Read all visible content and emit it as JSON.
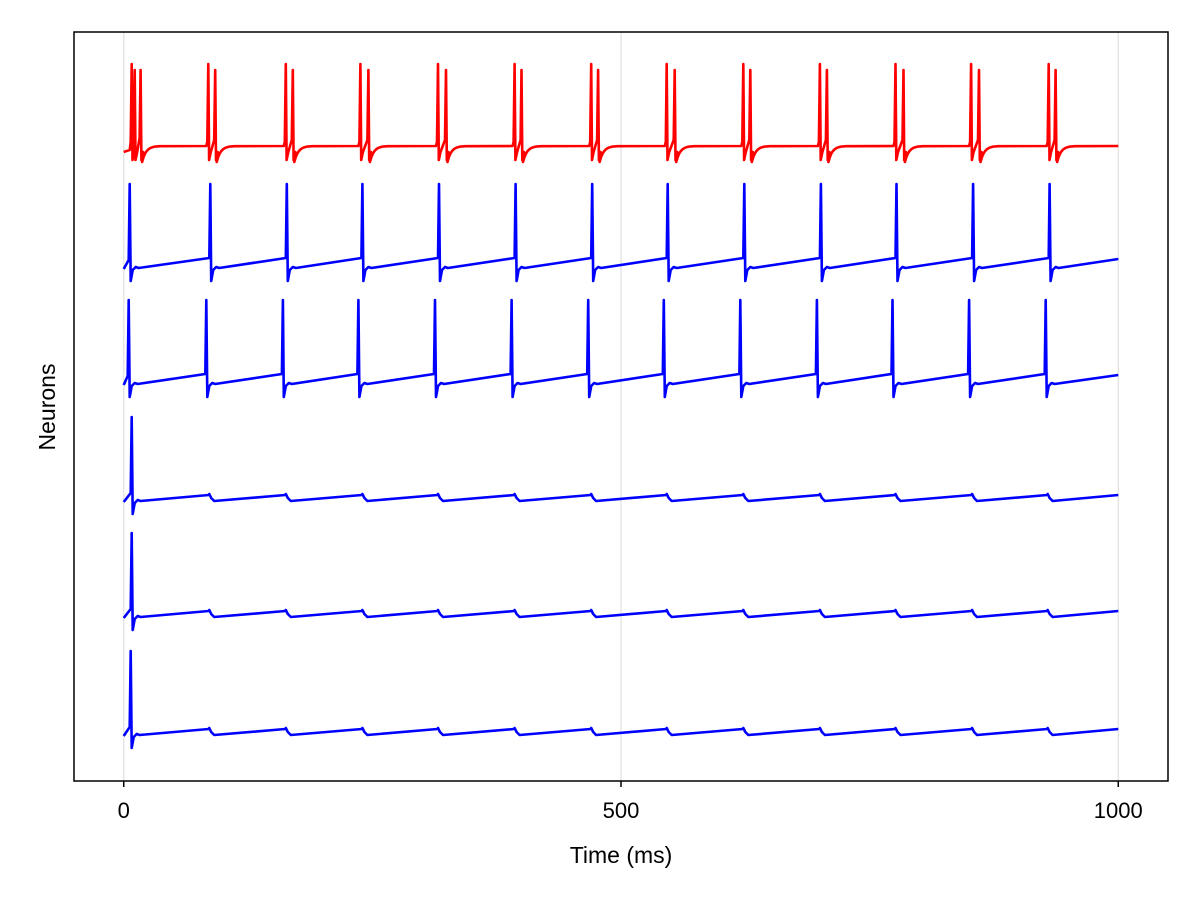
{
  "chart_data": {
    "type": "line",
    "title": "",
    "xlabel": "Time (ms)",
    "ylabel": "Neurons",
    "xlim": [
      -50,
      1050
    ],
    "xticks": [
      0,
      500,
      1000
    ],
    "xtick_labels": [
      "0",
      "500",
      "1000"
    ],
    "grid": true,
    "yticks_visible": false,
    "series": [
      {
        "color": "#ff0000",
        "kind": "burst",
        "bursts": [
          [
            8,
            11,
            17
          ],
          [
            85,
            92
          ],
          [
            163,
            170
          ],
          [
            238,
            246
          ],
          [
            316,
            324
          ],
          [
            393,
            400
          ],
          [
            470,
            477
          ],
          [
            546,
            554
          ],
          [
            623,
            630
          ],
          [
            700,
            707
          ],
          [
            776,
            784
          ],
          [
            852,
            860
          ],
          [
            930,
            937
          ]
        ]
      },
      {
        "color": "#0000ff",
        "kind": "regular",
        "spikes": [
          6,
          87,
          164,
          240,
          317,
          394,
          471,
          547,
          624,
          701,
          777,
          854,
          931
        ]
      },
      {
        "color": "#0000ff",
        "kind": "regular",
        "spikes": [
          5,
          83,
          160,
          236,
          313,
          390,
          467,
          543,
          620,
          697,
          773,
          850,
          927
        ]
      },
      {
        "color": "#0000ff",
        "kind": "subthreshold",
        "spikes": [
          8
        ],
        "bumps": [
          86,
          163,
          240,
          316,
          393,
          470,
          546,
          623,
          700,
          776,
          853,
          929
        ]
      },
      {
        "color": "#0000ff",
        "kind": "subthreshold",
        "spikes": [
          8
        ],
        "bumps": [
          86,
          163,
          240,
          316,
          393,
          470,
          546,
          623,
          700,
          776,
          853,
          929
        ]
      },
      {
        "color": "#0000ff",
        "kind": "subthreshold",
        "spikes": [
          7
        ],
        "bumps": [
          86,
          163,
          240,
          316,
          393,
          470,
          546,
          623,
          700,
          776,
          853,
          929
        ]
      }
    ]
  }
}
